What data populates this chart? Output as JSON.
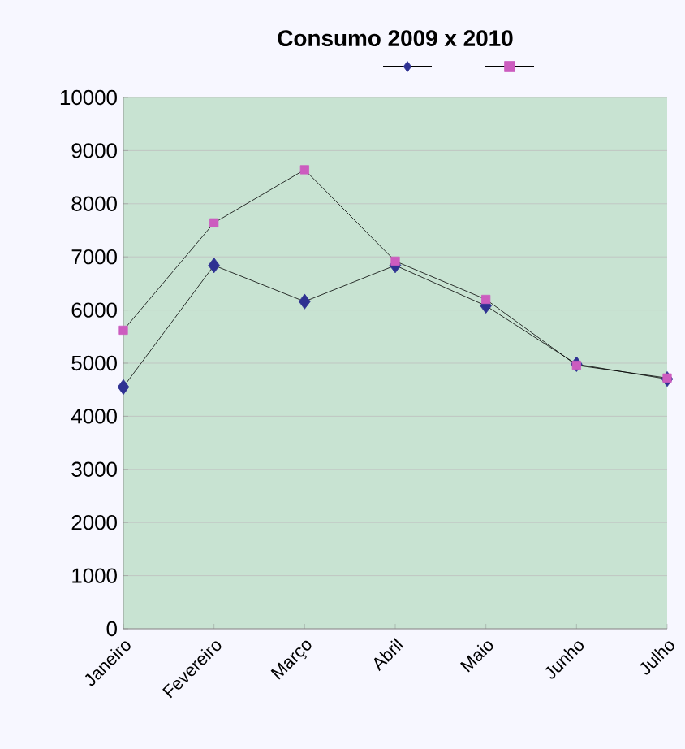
{
  "chart_data": {
    "type": "line",
    "title": "Consumo 2009 x 2010",
    "categories": [
      "Janeiro",
      "Fevereiro",
      "Março",
      "Abril",
      "Maio",
      "Junho",
      "Julho"
    ],
    "series": [
      {
        "color": "#2e3192",
        "marker": "diamond",
        "values": [
          4550,
          6840,
          6160,
          6840,
          6080,
          4980,
          4700
        ]
      },
      {
        "color": "#cc5cbf",
        "marker": "square",
        "values": [
          5620,
          7640,
          8640,
          6920,
          6200,
          4960,
          4720
        ]
      }
    ],
    "ylim": [
      0,
      10000
    ],
    "yticks": [
      0,
      1000,
      2000,
      3000,
      4000,
      5000,
      6000,
      7000,
      8000,
      9000,
      10000
    ],
    "grid": "y",
    "line_style": "solid"
  }
}
